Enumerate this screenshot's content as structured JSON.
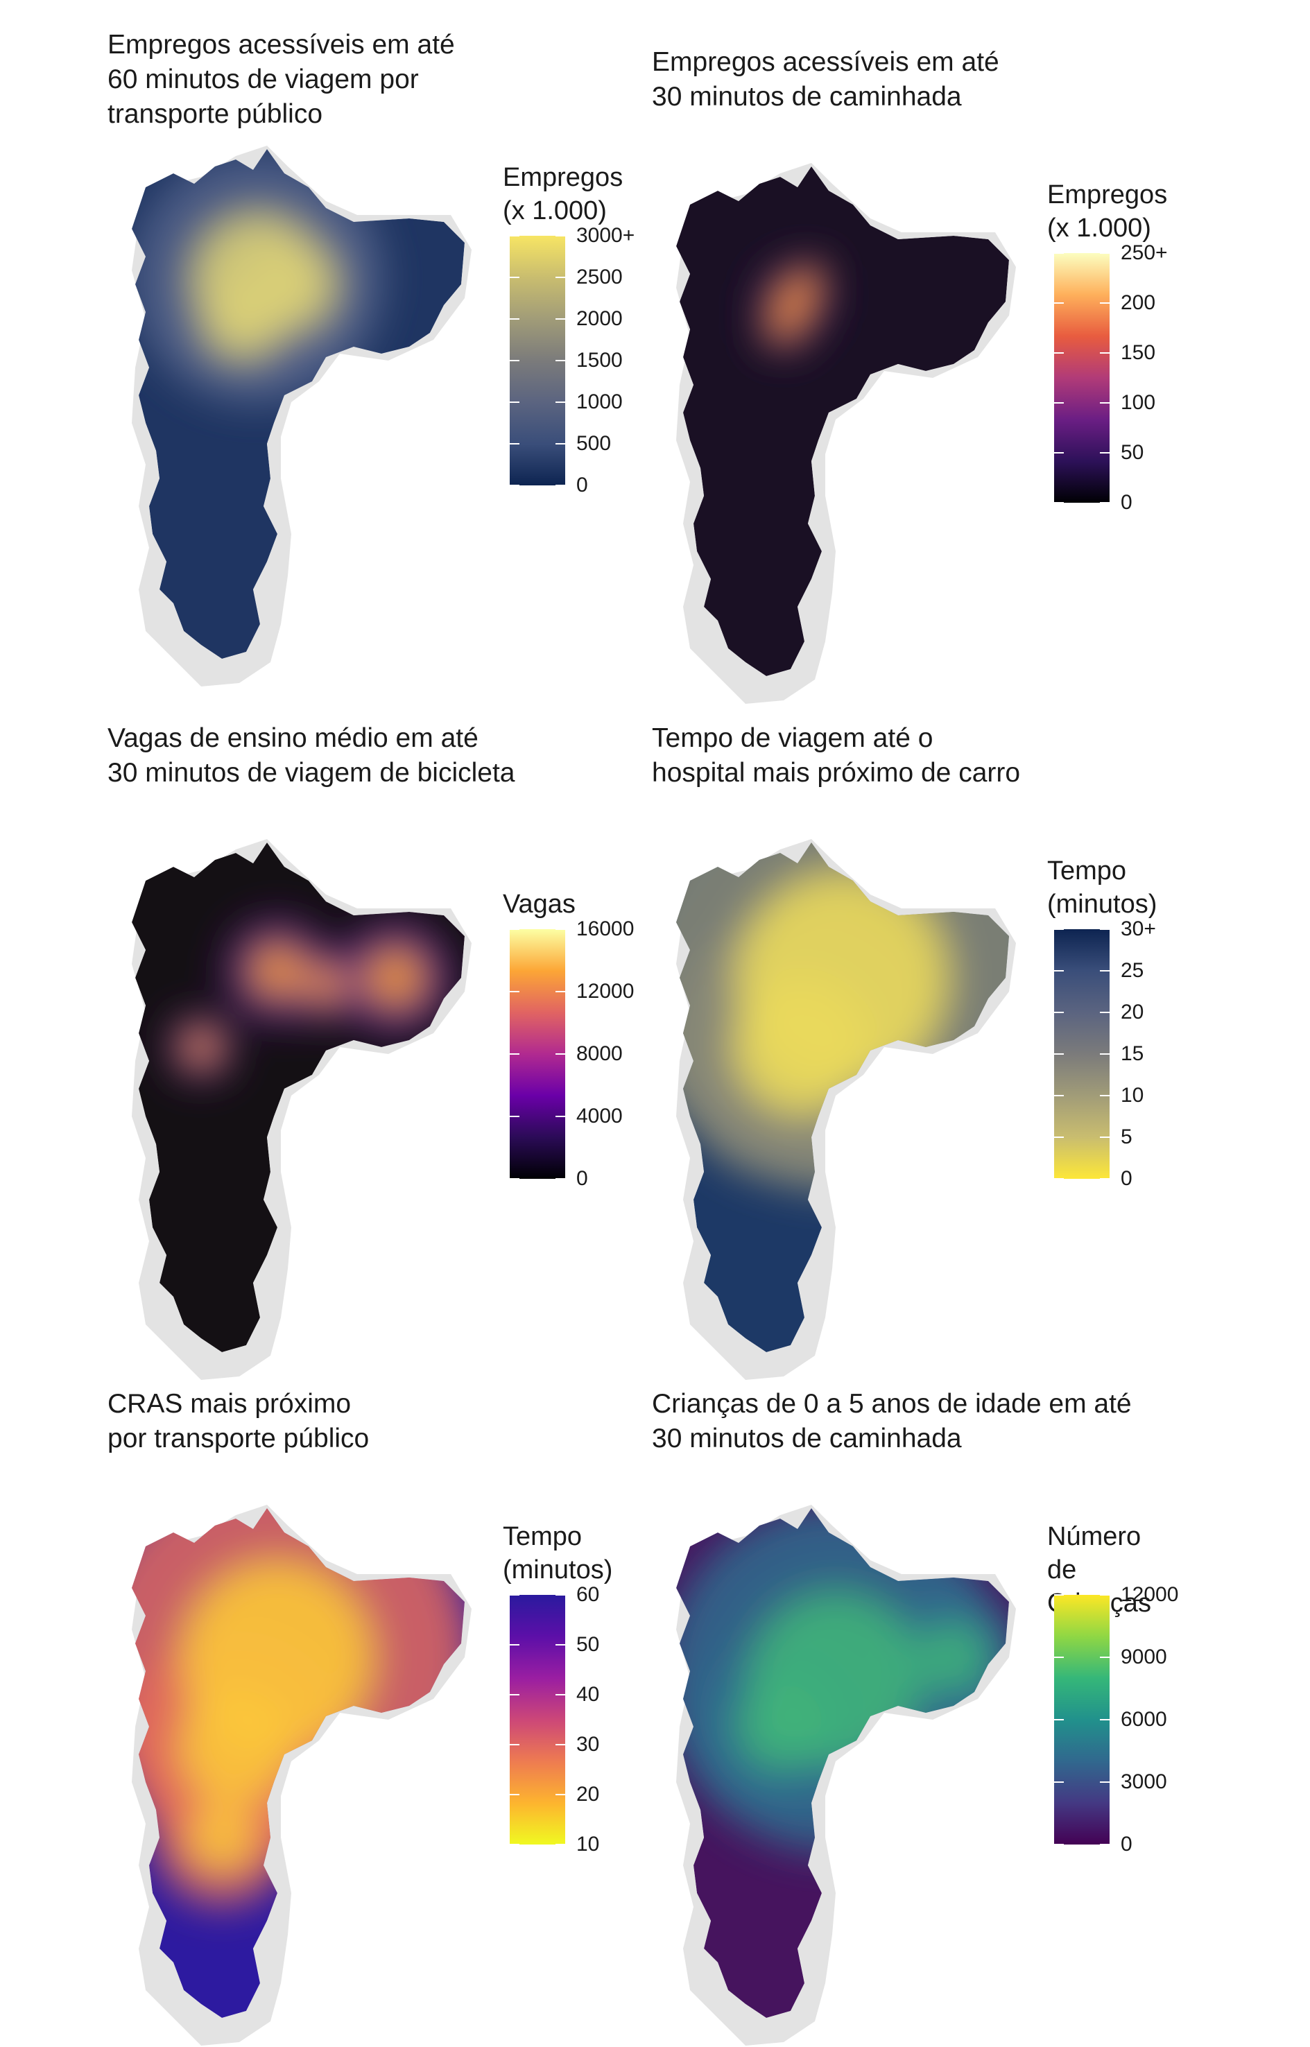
{
  "panels": [
    {
      "id": "jobs-transit",
      "title": "Empregos acessíveis em até\n60 minutos de viagem por\ntransporte público",
      "legend": {
        "title": "Empregos\n(x 1.000)",
        "ticks": [
          "3000+",
          "2500",
          "2000",
          "1500",
          "1000",
          "500",
          "0"
        ],
        "colors": [
          "#f7e564",
          "#c9bd6f",
          "#a19c78",
          "#7b7b7b",
          "#5b6480",
          "#3a4e7a",
          "#0d2451"
        ]
      },
      "map_colors": {
        "outer": "#1f3562",
        "mid": "#52628a",
        "center": "#d9cf77"
      }
    },
    {
      "id": "jobs-walk",
      "title": "Empregos acessíveis em até\n30 minutos de caminhada",
      "legend": {
        "title": "Empregos\n(x 1.000)",
        "ticks": [
          "250+",
          "200",
          "150",
          "100",
          "50",
          "0"
        ],
        "colors": [
          "#fcfec0",
          "#feb05b",
          "#e85c3f",
          "#b13b78",
          "#6b1e84",
          "#2d1159",
          "#000004"
        ]
      },
      "map_colors": {
        "outer": "#1a1024",
        "mid": "#3b1760",
        "center": "#f4923a"
      }
    },
    {
      "id": "school-bike",
      "title": "Vagas de ensino médio em até\n30 minutos de viagem de bicicleta",
      "legend": {
        "title": "Vagas",
        "ticks": [
          "16000",
          "12000",
          "8000",
          "4000",
          "0"
        ],
        "colors": [
          "#fcffa4",
          "#fca636",
          "#e16462",
          "#b12a90",
          "#6a00a8",
          "#2b0b57",
          "#000004"
        ]
      },
      "map_colors": {
        "outer": "#141014",
        "mid": "#5e1f80",
        "center": "#f59c3b"
      }
    },
    {
      "id": "hospital-car",
      "title": "Tempo de viagem até o\nhospital mais próximo de carro",
      "legend": {
        "title": "Tempo\n(minutos)",
        "ticks": [
          "30+",
          "25",
          "20",
          "15",
          "10",
          "5",
          "0"
        ],
        "colors": [
          "#0d2451",
          "#3a4e7a",
          "#5b6480",
          "#7b7b7b",
          "#a19c78",
          "#c9bd6f",
          "#fde738"
        ]
      },
      "map_colors": {
        "outer": "#1d3966",
        "mid": "#8a8a77",
        "center": "#ead95c"
      }
    },
    {
      "id": "cras-transit",
      "title": "CRAS mais próximo\npor transporte público",
      "legend": {
        "title": "Tempo\n(minutos)",
        "ticks": [
          "60",
          "50",
          "40",
          "30",
          "20",
          "10"
        ],
        "colors": [
          "#2a1a9e",
          "#5c0fa8",
          "#9a1ea2",
          "#cc4778",
          "#ee7b51",
          "#fdb42f",
          "#f0f921"
        ]
      },
      "map_colors": {
        "outer": "#2d1aa0",
        "mid": "#e46b5c",
        "center": "#fbc63a"
      }
    },
    {
      "id": "children-walk",
      "title": "Crianças de 0 a 5 anos de idade em até\n30 minutos de caminhada",
      "legend": {
        "title": "Número de\nCrianças",
        "ticks": [
          "12000",
          "9000",
          "6000",
          "3000",
          "0"
        ],
        "colors": [
          "#fde725",
          "#8fd744",
          "#35b779",
          "#21918c",
          "#31688e",
          "#443983",
          "#440154"
        ]
      },
      "map_colors": {
        "outer": "#46145e",
        "mid": "#2f6c8e",
        "center": "#3fb27a"
      }
    }
  ],
  "background_region_color": "#e3e3e3"
}
